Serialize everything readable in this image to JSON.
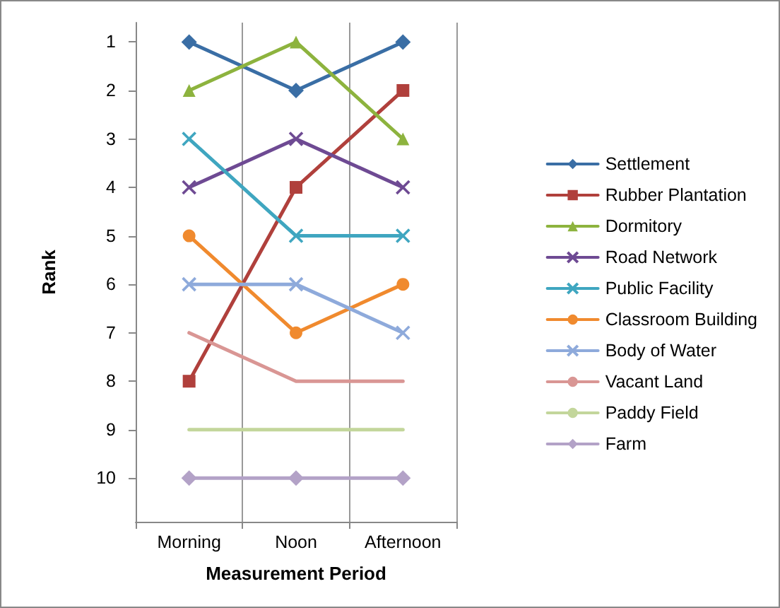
{
  "chart_data": {
    "type": "line",
    "xlabel": "Measurement Period",
    "ylabel": "Rank",
    "categories": [
      "Morning",
      "Noon",
      "Afternoon"
    ],
    "ylim": [
      10.9,
      0.6
    ],
    "yticks": [
      1,
      2,
      3,
      4,
      5,
      6,
      7,
      8,
      9,
      10
    ],
    "grid": "x",
    "legend": "right",
    "series": [
      {
        "name": "Settlement",
        "color": "#3a6ea5",
        "marker": "diamond",
        "values": [
          1,
          2,
          1
        ]
      },
      {
        "name": "Rubber Plantation",
        "color": "#b0403c",
        "marker": "square",
        "values": [
          8,
          4,
          2
        ]
      },
      {
        "name": "Dormitory",
        "color": "#8db33e",
        "marker": "triangle",
        "values": [
          2,
          1,
          3
        ]
      },
      {
        "name": "Road Network",
        "color": "#6e4a93",
        "marker": "cross",
        "values": [
          4,
          3,
          4
        ]
      },
      {
        "name": "Public Facility",
        "color": "#3fa6c0",
        "marker": "cross",
        "values": [
          3,
          5,
          5
        ]
      },
      {
        "name": "Classroom Building",
        "color": "#f08a2e",
        "marker": "circle",
        "values": [
          5,
          7,
          6
        ]
      },
      {
        "name": "Body of Water",
        "color": "#8eaadb",
        "marker": "cross",
        "values": [
          6,
          6,
          7
        ]
      },
      {
        "name": "Vacant Land",
        "color": "#d99694",
        "marker": "none",
        "values": [
          7,
          8,
          8
        ]
      },
      {
        "name": "Paddy Field",
        "color": "#c3d69b",
        "marker": "none",
        "values": [
          9,
          9,
          9
        ]
      },
      {
        "name": "Farm",
        "color": "#b3a2c7",
        "marker": "diamond",
        "values": [
          10,
          10,
          10
        ]
      }
    ]
  }
}
